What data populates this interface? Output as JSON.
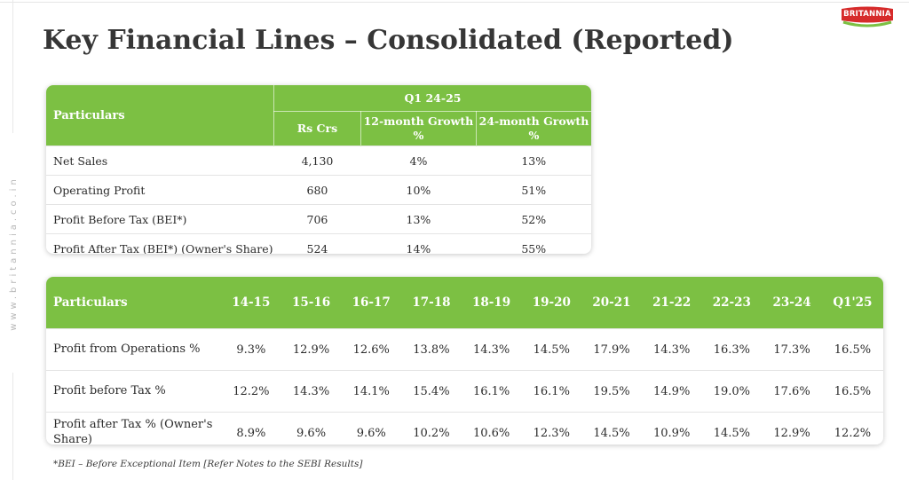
{
  "page": {
    "title": "Key Financial Lines – Consolidated (Reported)",
    "side_url": "www.britannia.co.in",
    "logo_text": "BRITANNIA",
    "footnote": "*BEI – Before Exceptional Item [Refer Notes to the SEBI Results]"
  },
  "colors": {
    "header_green": "#7cc043",
    "logo_red": "#d62b2b",
    "title_gray": "#363636"
  },
  "table1": {
    "particulars_label": "Particulars",
    "group_label": "Q1 24-25",
    "sub_headers": [
      "Rs Crs",
      "12-month Growth %",
      "24-month Growth %"
    ],
    "rows": [
      {
        "label": "Net Sales",
        "values": [
          "4,130",
          "4%",
          "13%"
        ]
      },
      {
        "label": "Operating Profit",
        "values": [
          "680",
          "10%",
          "51%"
        ]
      },
      {
        "label": "Profit Before Tax (BEI*)",
        "values": [
          "706",
          "13%",
          "52%"
        ]
      },
      {
        "label": "Profit After Tax (BEI*) (Owner's Share)",
        "values": [
          "524",
          "14%",
          "55%"
        ]
      }
    ]
  },
  "table2": {
    "particulars_label": "Particulars",
    "columns": [
      "14-15",
      "15-16",
      "16-17",
      "17-18",
      "18-19",
      "19-20",
      "20-21",
      "21-22",
      "22-23",
      "23-24",
      "Q1'25"
    ],
    "rows": [
      {
        "label": "Profit from Operations %",
        "values": [
          "9.3%",
          "12.9%",
          "12.6%",
          "13.8%",
          "14.3%",
          "14.5%",
          "17.9%",
          "14.3%",
          "16.3%",
          "17.3%",
          "16.5%"
        ]
      },
      {
        "label": "Profit before Tax %",
        "values": [
          "12.2%",
          "14.3%",
          "14.1%",
          "15.4%",
          "16.1%",
          "16.1%",
          "19.5%",
          "14.9%",
          "19.0%",
          "17.6%",
          "16.5%"
        ]
      },
      {
        "label": "Profit after Tax % (Owner's Share)",
        "values": [
          "8.9%",
          "9.6%",
          "9.6%",
          "10.2%",
          "10.6%",
          "12.3%",
          "14.5%",
          "10.9%",
          "14.5%",
          "12.9%",
          "12.2%"
        ]
      }
    ]
  }
}
